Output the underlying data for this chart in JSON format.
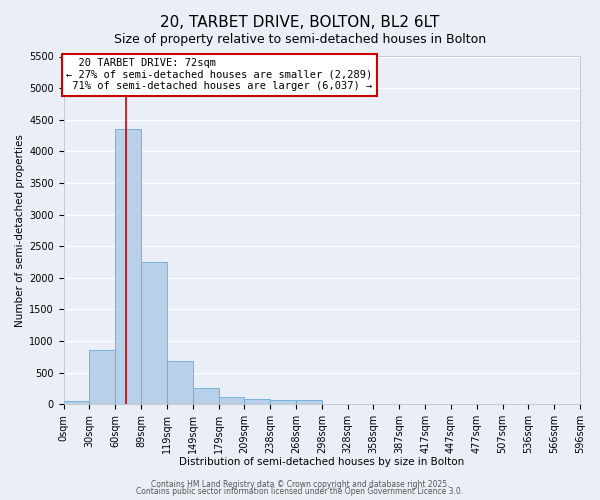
{
  "title": "20, TARBET DRIVE, BOLTON, BL2 6LT",
  "subtitle": "Size of property relative to semi-detached houses in Bolton",
  "xlabel": "Distribution of semi-detached houses by size in Bolton",
  "ylabel": "Number of semi-detached properties",
  "bin_labels": [
    "0sqm",
    "30sqm",
    "60sqm",
    "89sqm",
    "119sqm",
    "149sqm",
    "179sqm",
    "209sqm",
    "238sqm",
    "268sqm",
    "298sqm",
    "328sqm",
    "358sqm",
    "387sqm",
    "417sqm",
    "447sqm",
    "477sqm",
    "507sqm",
    "536sqm",
    "566sqm",
    "596sqm"
  ],
  "bar_heights": [
    50,
    850,
    4350,
    2250,
    680,
    260,
    120,
    80,
    60,
    60,
    0,
    0,
    0,
    0,
    0,
    0,
    0,
    0,
    0,
    0
  ],
  "bar_color": "#b8d0ea",
  "bar_edge_color": "#6aaad4",
  "property_size": 72,
  "property_name": "20 TARBET DRIVE: 72sqm",
  "pct_smaller": 27,
  "n_smaller": 2289,
  "pct_larger": 71,
  "n_larger": 6037,
  "vline_color": "#cc0000",
  "ylim": [
    0,
    5500
  ],
  "yticks": [
    0,
    500,
    1000,
    1500,
    2000,
    2500,
    3000,
    3500,
    4000,
    4500,
    5000,
    5500
  ],
  "bg_color": "#eaeff7",
  "grid_color": "#ffffff",
  "annotation_box_color": "#cc0000",
  "footer1": "Contains HM Land Registry data © Crown copyright and database right 2025.",
  "footer2": "Contains public sector information licensed under the Open Government Licence 3.0.",
  "title_fontsize": 11,
  "subtitle_fontsize": 9,
  "axis_label_fontsize": 7.5,
  "tick_fontsize": 7,
  "annotation_fontsize": 7.5,
  "footer_fontsize": 5.5
}
